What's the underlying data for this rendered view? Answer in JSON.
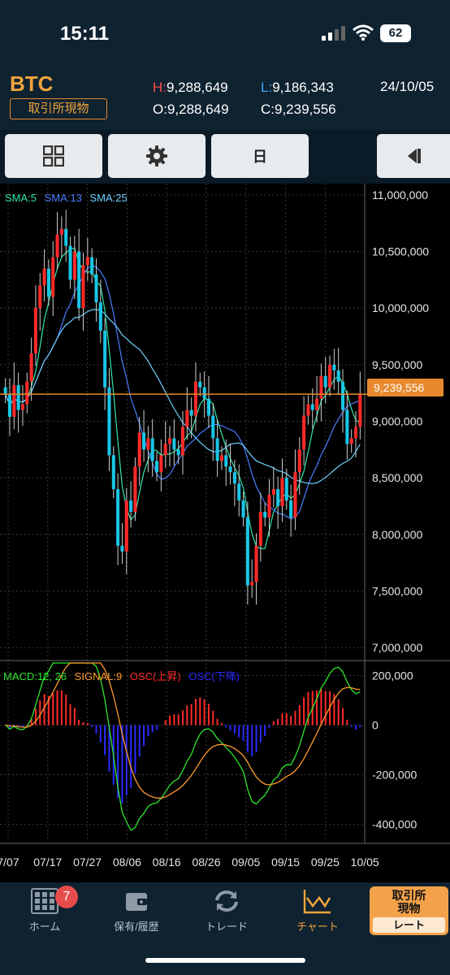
{
  "status_bar": {
    "time": "15:11",
    "battery": "62"
  },
  "header": {
    "symbol": "BTC",
    "market_badge": "取引所現物",
    "high_label": "H:",
    "high": "9,288,649",
    "low_label": "L:",
    "low": "9,186,343",
    "open_label": "O:",
    "open": "9,288,649",
    "close_label": "C:",
    "close": "9,239,556",
    "date": "24/10/05"
  },
  "toolbar": {
    "layout_icon": "grid-icon",
    "settings_icon": "gear-icon",
    "period_label": "日",
    "collapse_icon": "collapse-panel-icon"
  },
  "chart_data": [
    {
      "type": "candlestick",
      "indicators": [
        "SMA:5",
        "SMA:13",
        "SMA:25"
      ],
      "indicator_colors": [
        "#2ee6a8",
        "#4a7cff",
        "#6fd0ff"
      ],
      "y_tick_labels": [
        "11,000,000",
        "10,500,000",
        "10,000,000",
        "9,500,000",
        "9,000,000",
        "8,500,000",
        "8,000,000",
        "7,500,000",
        "7,000,000"
      ],
      "ylim": [
        6900000,
        11100000
      ],
      "current_price_label": "9,239,556",
      "current_price": 9239556,
      "up_color": "#ff2a2a",
      "down_color": "#19c6e6",
      "grid": true,
      "closes": [
        9240000,
        9040000,
        9320000,
        9100000,
        9150000,
        9350000,
        9600000,
        10000000,
        10200000,
        10350000,
        10100000,
        10450000,
        10650000,
        10700000,
        10550000,
        10250000,
        10500000,
        10000000,
        10380000,
        10450000,
        10300000,
        10050000,
        9800000,
        9300000,
        8700000,
        8400000,
        7900000,
        7850000,
        8300000,
        8200000,
        8600000,
        8900000,
        8750000,
        8850000,
        8650000,
        8550000,
        8700000,
        8800000,
        8850000,
        8750000,
        8700000,
        8950000,
        9100000,
        9050000,
        9350000,
        9300000,
        9200000,
        9050000,
        8850000,
        8650000,
        8700000,
        8600000,
        8550000,
        8450000,
        8300000,
        8150000,
        7550000,
        7580000,
        7900000,
        8200000,
        8150000,
        8350000,
        8400000,
        8250000,
        8500000,
        8300000,
        8150000,
        8550000,
        8750000,
        9050000,
        9150000,
        9100000,
        9200000,
        9400000,
        9300000,
        9500000,
        9450000,
        9350000,
        9100000,
        8800000,
        8850000,
        8950000,
        9239556
      ]
    },
    {
      "type": "line",
      "title_parts": [
        {
          "text": "MACD:12, 26",
          "color": "#2ee62e"
        },
        {
          "text": "SIGNAL:9",
          "color": "#ff9a2e"
        },
        {
          "text": "OSC(上昇)",
          "color": "#ff2a2a"
        },
        {
          "text": "OSC(下降)",
          "color": "#2a2aff"
        }
      ],
      "y_tick_labels": [
        "200,000",
        "0",
        "-200,000",
        "-400,000"
      ],
      "ylim": [
        -470000,
        250000
      ],
      "series": [
        {
          "name": "MACD",
          "color": "#2ee62e"
        },
        {
          "name": "SIGNAL",
          "color": "#ff9a2e"
        }
      ],
      "x_tick_labels": [
        "7/07",
        "07/17",
        "07/27",
        "08/06",
        "08/16",
        "08/26",
        "09/05",
        "09/15",
        "09/25",
        "10/05"
      ]
    }
  ],
  "tabbar": {
    "items": [
      {
        "label": "ホーム",
        "icon": "home-grid-icon",
        "badge": "7"
      },
      {
        "label": "保有/履歴",
        "icon": "wallet-icon"
      },
      {
        "label": "トレード",
        "icon": "refresh-arrows-icon"
      },
      {
        "label": "チャート",
        "icon": "chart-icon"
      }
    ],
    "rate_button_top": "取引所\n現物",
    "rate_button_bottom": "レート"
  }
}
